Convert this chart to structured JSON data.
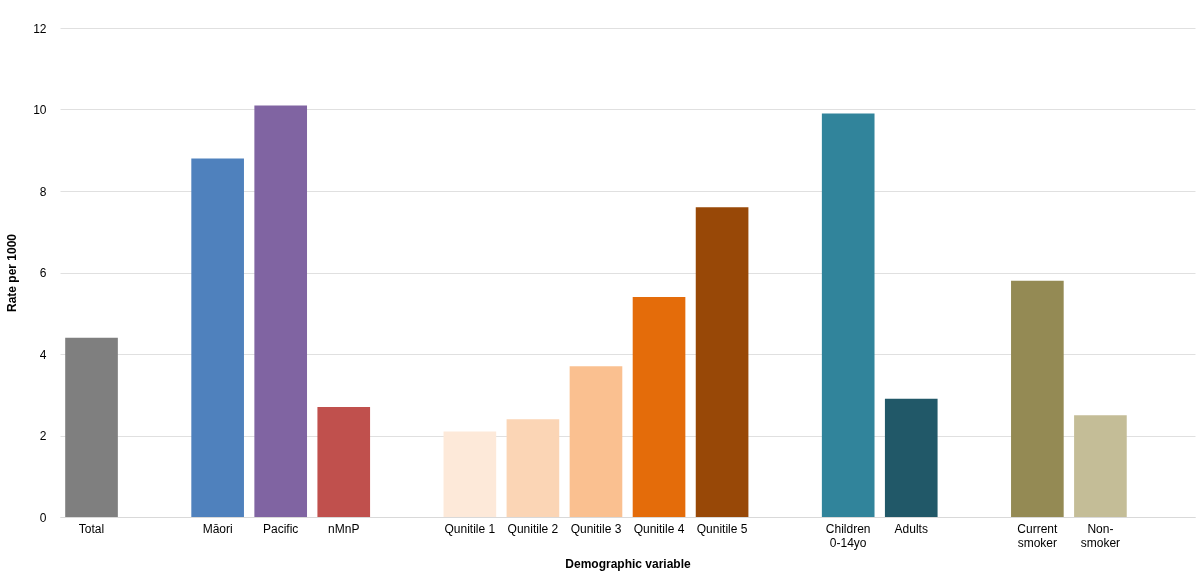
{
  "chart_data": {
    "type": "bar",
    "xlabel": "Demographic variable",
    "ylabel": "Rate per 1000",
    "categories": [
      "Total",
      null,
      "Māori",
      "Pacific",
      "nMnP",
      null,
      "Qunitile 1",
      "Qunitile 2",
      "Qunitile 3",
      "Qunitile 4",
      "Qunitile 5",
      null,
      "Children\n0-14yo",
      "Adults",
      null,
      "Current\nsmoker",
      "Non-\nsmoker",
      null
    ],
    "values": [
      4.4,
      null,
      8.8,
      10.1,
      2.7,
      null,
      2.1,
      2.4,
      3.7,
      5.4,
      7.6,
      null,
      9.9,
      2.9,
      null,
      5.8,
      2.5,
      null
    ],
    "colors": [
      "#7f7f7f",
      null,
      "#4f81bd",
      "#8064a2",
      "#c0504d",
      null,
      "#fde9d9",
      "#fbd5b5",
      "#fac090",
      "#e46c0a",
      "#984807",
      null,
      "#31849b",
      "#215868",
      null,
      "#948a54",
      "#c4bd97",
      null
    ],
    "ylim": [
      0,
      12
    ],
    "yticks": [
      0,
      2,
      4,
      6,
      8,
      10,
      12
    ],
    "grid": "y"
  }
}
